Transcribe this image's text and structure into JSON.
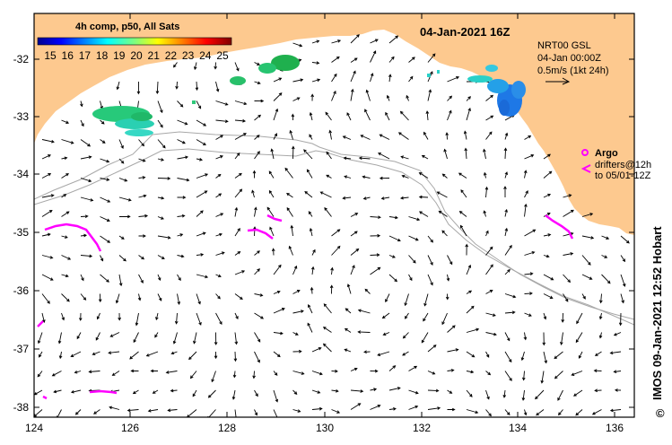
{
  "map": {
    "date_title": "04-Jan-2021 16Z",
    "colorbar_title": "4h comp, p50, All Sats",
    "colorbar_ticks": [
      "15",
      "16",
      "17",
      "18",
      "19",
      "20",
      "21",
      "22",
      "23",
      "24",
      "25"
    ],
    "info_lines": [
      "NRT00 GSL",
      "04-Jan 00:00Z",
      "0.5m/s (1kt 24h)"
    ],
    "argo_label": "Argo",
    "drifters_lines": [
      "drifters@12h",
      "to 05/01-12Z"
    ],
    "side_text": "IMOS 09-Jan-2021 12:52 Hobart",
    "copyright_symbol": "©",
    "lon_ticks": [
      "124",
      "126",
      "128",
      "130",
      "132",
      "134",
      "136"
    ],
    "lat_ticks": [
      "-32",
      "-33",
      "-34",
      "-35",
      "-36",
      "-37",
      "-38"
    ],
    "land_color": "#fdc98f",
    "drifter_color": "#ff00ff"
  }
}
